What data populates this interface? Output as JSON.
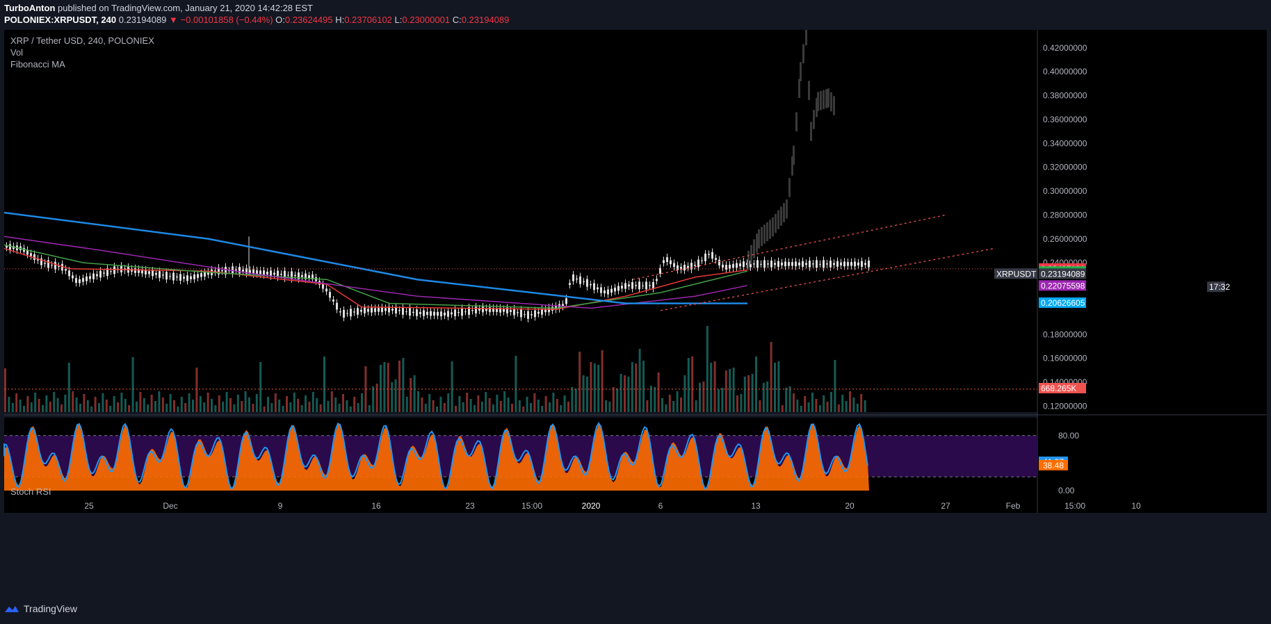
{
  "header": {
    "author": "TurboAnton",
    "published": "published on TradingView.com, January 21, 2020 14:42:28 EST",
    "symbol": "POLONIEX:XRPUSDT, 240",
    "last": "0.23194089",
    "change": "−0.00101858 (−0.44%)",
    "o_label": "O:",
    "o": "0.23624495",
    "h_label": "H:",
    "h": "0.23706102",
    "l_label": "L:",
    "l": "0.23000001",
    "c_label": "C:",
    "c": "0.23194089"
  },
  "legend": {
    "title": "XRP / Tether USD, 240, POLONIEX",
    "vol": "Vol",
    "ma": "Fibonacci MA",
    "stoch": "Stoch RSI"
  },
  "footer": {
    "brand": "TradingView"
  },
  "colors": {
    "bg": "#131722",
    "pane": "#000000",
    "up": "#26a69a",
    "down": "#ef5350",
    "ma_red": "#e53935",
    "ma_green": "#43a047",
    "ma_purple": "#9c27b0",
    "ma_blue": "#1e88e5",
    "stoch_k": "#2196f3",
    "stoch_d": "#ff6d00",
    "stoch_band": "#2a0a4a"
  },
  "chart_data": {
    "type": "line",
    "price_axis": [
      "0.42000000",
      "0.40000000",
      "0.38000000",
      "0.36000000",
      "0.34000000",
      "0.32000000",
      "0.30000000",
      "0.28000000",
      "0.26000000",
      "0.24000000",
      "0.18000000",
      "0.16000000",
      "0.14000000",
      "0.12000000"
    ],
    "price_range": [
      0.115,
      0.435
    ],
    "time_axis": [
      "25",
      "Dec",
      "9",
      "16",
      "23",
      "15:00",
      "2020",
      "6",
      "13",
      "20",
      "27",
      "Feb",
      "15:00",
      "10"
    ],
    "price_tags": [
      {
        "value": "0.23495191",
        "color": "#f23645"
      },
      {
        "value": "0.23242595",
        "color": "#22ab48"
      },
      {
        "value": "XRPUSDT",
        "color": "#363a45"
      },
      {
        "value": "0.23194089",
        "color": "#363a45"
      },
      {
        "value": "17:32",
        "color": "#363a45"
      },
      {
        "value": "0.22075598",
        "color": "#9c27b0"
      },
      {
        "value": "0.20626605",
        "color": "#03a9f4"
      }
    ],
    "volume_tag": "668.265K",
    "stoch_axis": [
      "80.00",
      "0.00"
    ],
    "stoch_tags": [
      {
        "value": "41.37",
        "color": "#2196f3"
      },
      {
        "value": "38.48",
        "color": "#ff6d00"
      }
    ],
    "price_path": [
      [
        0,
        0.254
      ],
      [
        30,
        0.252
      ],
      [
        60,
        0.24
      ],
      [
        90,
        0.236
      ],
      [
        110,
        0.224
      ],
      [
        140,
        0.23
      ],
      [
        170,
        0.235
      ],
      [
        200,
        0.233
      ],
      [
        240,
        0.229
      ],
      [
        270,
        0.227
      ],
      [
        290,
        0.23
      ],
      [
        310,
        0.233
      ],
      [
        340,
        0.234
      ],
      [
        370,
        0.232
      ],
      [
        410,
        0.23
      ],
      [
        450,
        0.228
      ],
      [
        470,
        0.216
      ],
      [
        490,
        0.197
      ],
      [
        520,
        0.2
      ],
      [
        560,
        0.201
      ],
      [
        600,
        0.198
      ],
      [
        640,
        0.197
      ],
      [
        690,
        0.201
      ],
      [
        730,
        0.2
      ],
      [
        760,
        0.196
      ],
      [
        790,
        0.201
      ],
      [
        812,
        0.205
      ],
      [
        820,
        0.228
      ],
      [
        840,
        0.224
      ],
      [
        870,
        0.215
      ],
      [
        900,
        0.221
      ],
      [
        940,
        0.221
      ],
      [
        955,
        0.244
      ],
      [
        975,
        0.235
      ],
      [
        1000,
        0.238
      ],
      [
        1020,
        0.248
      ],
      [
        1040,
        0.236
      ],
      [
        1070,
        0.239
      ]
    ],
    "projection_path": [
      [
        1075,
        0.242
      ],
      [
        1090,
        0.26
      ],
      [
        1110,
        0.27
      ],
      [
        1130,
        0.285
      ],
      [
        1140,
        0.33
      ],
      [
        1150,
        0.4
      ],
      [
        1158,
        0.43
      ],
      [
        1165,
        0.35
      ],
      [
        1175,
        0.375
      ],
      [
        1190,
        0.378
      ],
      [
        1200,
        0.37
      ]
    ]
  }
}
